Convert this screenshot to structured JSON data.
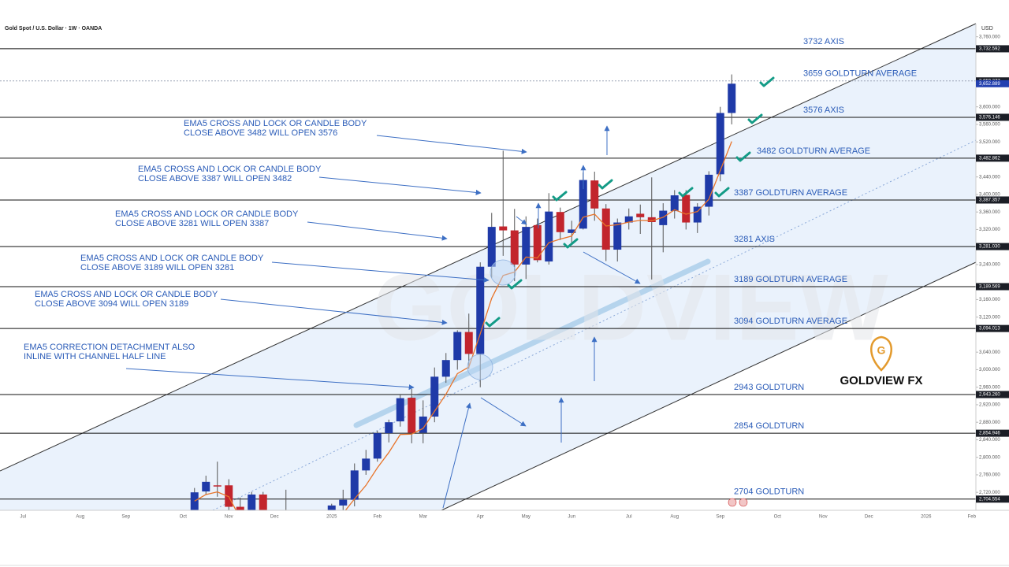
{
  "chart_data": {
    "type": "candlestick",
    "title": "Gold Spot / U.S. Dollar · 1W · OANDA",
    "currency": "USD",
    "brand": "GOLDVIEW FX",
    "watermark": "GOLDVIEW",
    "categories": [
      null,
      null,
      "Jul",
      null,
      null,
      null,
      null,
      "Aug",
      null,
      null,
      null,
      "Sep",
      null,
      null,
      null,
      null,
      "Oct",
      null,
      null,
      null,
      "Nov",
      null,
      null,
      null,
      "Dec",
      null,
      null,
      null,
      null,
      "2025",
      null,
      null,
      null,
      "Feb",
      null,
      null,
      null,
      "Mar",
      null,
      null,
      null,
      null,
      "Apr",
      null,
      null,
      null,
      "May",
      null,
      null,
      null,
      "Jun",
      null,
      null,
      null,
      null,
      "Jul",
      null,
      null,
      null,
      "Aug",
      null,
      null,
      null,
      "Sep",
      null,
      null,
      null,
      null,
      "Oct",
      null,
      null,
      null,
      "Nov",
      null,
      null,
      null,
      "Dec",
      null,
      null,
      null,
      null,
      "2026",
      null,
      null,
      null,
      "Feb"
    ],
    "open": [
      null,
      null,
      null,
      null,
      null,
      null,
      null,
      null,
      null,
      null,
      null,
      null,
      null,
      null,
      null,
      null,
      null,
      2656,
      2722,
      2736,
      2736,
      2687,
      2563,
      2715,
      2650,
      2633,
      2660,
      2622,
      2621,
      2640,
      2690,
      2703,
      2770,
      2797,
      2855,
      2882,
      2936,
      2856,
      2893,
      2984,
      3022,
      3086,
      3036,
      3235,
      3327,
      3318,
      3240,
      3330,
      3247,
      3360,
      3312,
      3322,
      3432,
      3368,
      3274,
      3336,
      3356,
      3348,
      3330,
      3362,
      3399,
      3336,
      3372,
      3446,
      3586,
      null,
      null,
      null,
      null,
      null,
      null,
      null,
      null,
      null,
      null,
      null,
      null,
      null,
      null,
      null,
      null,
      null,
      null,
      null,
      null,
      null
    ],
    "high": [
      null,
      null,
      null,
      null,
      null,
      null,
      null,
      null,
      null,
      null,
      null,
      null,
      null,
      null,
      null,
      null,
      null,
      2730,
      2758,
      2790,
      2750,
      2708,
      2721,
      2721,
      2677,
      2726,
      2671,
      2634,
      2650,
      2694,
      2726,
      2786,
      2817,
      2861,
      2886,
      2942,
      2956,
      2930,
      3005,
      3038,
      3090,
      3128,
      3245,
      3358,
      3500,
      3367,
      3350,
      3345,
      3403,
      3370,
      3340,
      3450,
      3452,
      3378,
      3345,
      3368,
      3377,
      3439,
      3380,
      3410,
      3410,
      3380,
      3453,
      3600,
      3674,
      null,
      null,
      null,
      null,
      null,
      null,
      null,
      null,
      null,
      null,
      null,
      null,
      null,
      null,
      null,
      null,
      null,
      null,
      null,
      null,
      null
    ],
    "low": [
      null,
      null,
      null,
      null,
      null,
      null,
      null,
      null,
      null,
      null,
      null,
      null,
      null,
      null,
      null,
      null,
      null,
      2640,
      2715,
      2710,
      2643,
      2536,
      2563,
      2632,
      2613,
      2622,
      2583,
      2596,
      2598,
      2614,
      2665,
      2688,
      2760,
      2790,
      2834,
      2870,
      2832,
      2832,
      2880,
      2970,
      3000,
      3002,
      2960,
      3210,
      3260,
      3202,
      3207,
      3245,
      3240,
      3296,
      3290,
      3320,
      3340,
      3248,
      3247,
      3320,
      3310,
      3206,
      3268,
      3345,
      3320,
      3312,
      3352,
      3430,
      3560,
      null,
      null,
      null,
      null,
      null,
      null,
      null,
      null,
      null,
      null,
      null,
      null,
      null,
      null,
      null,
      null,
      null,
      null,
      null,
      null,
      null
    ],
    "close": [
      null,
      null,
      null,
      null,
      null,
      null,
      null,
      null,
      null,
      null,
      null,
      null,
      null,
      null,
      null,
      null,
      null,
      2720,
      2744,
      2734,
      2687,
      2563,
      2715,
      2650,
      2633,
      2660,
      2622,
      2621,
      2640,
      2690,
      2703,
      2770,
      2797,
      2855,
      2880,
      2935,
      2856,
      2893,
      2984,
      3022,
      3086,
      3036,
      3235,
      3326,
      3318,
      3240,
      3326,
      3250,
      3361,
      3314,
      3320,
      3433,
      3368,
      3274,
      3336,
      3350,
      3348,
      3337,
      3363,
      3398,
      3336,
      3372,
      3445,
      3586,
      3652.889,
      null,
      null,
      null,
      null,
      null,
      null,
      null,
      null,
      null,
      null,
      null,
      null,
      null,
      null,
      null,
      null,
      null,
      null,
      null,
      null,
      null
    ],
    "ema": [
      null,
      null,
      null,
      null,
      null,
      null,
      null,
      null,
      null,
      null,
      null,
      null,
      null,
      null,
      null,
      null,
      null,
      2700,
      2715,
      2721,
      2710,
      2661,
      2679,
      2669,
      2657,
      2658,
      2646,
      2638,
      2639,
      2656,
      2672,
      2705,
      2736,
      2776,
      2811,
      2852,
      2853,
      2866,
      2905,
      2944,
      2991,
      3006,
      3082,
      3163,
      3215,
      3223,
      3257,
      3255,
      3290,
      3298,
      3305,
      3348,
      3355,
      3328,
      3331,
      3337,
      3341,
      3340,
      3348,
      3365,
      3355,
      3361,
      3389,
      3455,
      3521,
      null,
      null,
      null,
      null,
      null,
      null,
      null,
      null,
      null,
      null,
      null,
      null,
      null,
      null,
      null,
      null,
      null,
      null,
      null,
      null,
      null
    ],
    "up_color": "#1f3aa8",
    "down_color": "#c2252d",
    "ema_color": "#e8742a",
    "last_price": {
      "value": 3652.889,
      "label": "3,652.889"
    },
    "ylim": [
      2679,
      3790
    ],
    "yticks": [
      {
        "value": 2720,
        "label": "2,720.000"
      },
      {
        "value": 2760,
        "label": "2,760.000"
      },
      {
        "value": 2800,
        "label": "2,800.000"
      },
      {
        "value": 2840,
        "label": "2,840.000"
      },
      {
        "value": 2880,
        "label": "2,880.000"
      },
      {
        "value": 2920,
        "label": "2,920.000"
      },
      {
        "value": 2960,
        "label": "2,960.000"
      },
      {
        "value": 3000,
        "label": "3,000.000"
      },
      {
        "value": 3040,
        "label": "3,040.000"
      },
      {
        "value": 3120,
        "label": "3,120.000"
      },
      {
        "value": 3160,
        "label": "3,160.000"
      },
      {
        "value": 3240,
        "label": "3,240.000"
      },
      {
        "value": 3320,
        "label": "3,320.000"
      },
      {
        "value": 3360,
        "label": "3,360.000"
      },
      {
        "value": 3400,
        "label": "3,400.000"
      },
      {
        "value": 3440,
        "label": "3,440.000"
      },
      {
        "value": 3520,
        "label": "3,520.000"
      },
      {
        "value": 3560,
        "label": "3,560.000"
      },
      {
        "value": 3600,
        "label": "3,600.000"
      },
      {
        "value": 3760,
        "label": "3,760.000"
      }
    ],
    "levels": [
      {
        "value": 3732.592,
        "label": "3732 AXIS",
        "tag": "3,732.592"
      },
      {
        "value": 3659.277,
        "label": "3659 GOLDTURN AVERAGE",
        "tag": "3,659.277",
        "line_style": "dotted"
      },
      {
        "value": 3576.146,
        "label": "3576 AXIS",
        "tag": "3,576.146"
      },
      {
        "value": 3482.862,
        "label": "3482 GOLDTURN AVERAGE",
        "tag": "3,482.862"
      },
      {
        "value": 3387.357,
        "label": "3387 GOLDTURN AVERAGE",
        "tag": "3,387.357"
      },
      {
        "value": 3281.03,
        "label": "3281 AXIS",
        "tag": "3,281.030"
      },
      {
        "value": 3189.569,
        "label": "3189 GOLDTURN AVERAGE",
        "tag": "3,189.569"
      },
      {
        "value": 3094.013,
        "label": "3094 GOLDTURN AVERAGE",
        "tag": "3,094.013"
      },
      {
        "value": 2943.26,
        "label": "2943 GOLDTURN",
        "tag": "2,943.260"
      },
      {
        "value": 2854.946,
        "label": "2854 GOLDTURN",
        "tag": "2,854.946"
      },
      {
        "value": 2704.554,
        "label": "2704 GOLDTURN",
        "tag": "2,704.554"
      }
    ],
    "annotations": [
      {
        "lines": [
          "EMA5 CROSS AND LOCK OR CANDLE BODY",
          "CLOSE ABOVE 3482 WILL OPEN 3576"
        ]
      },
      {
        "lines": [
          "EMA5 CROSS AND LOCK OR CANDLE BODY",
          "CLOSE ABOVE 3387 WILL OPEN 3482"
        ]
      },
      {
        "lines": [
          "EMA5 CROSS AND LOCK OR CANDLE BODY",
          "CLOSE ABOVE 3281 WILL OPEN 3387"
        ]
      },
      {
        "lines": [
          "EMA5 CROSS AND LOCK OR CANDLE BODY",
          "CLOSE ABOVE 3189 WILL OPEN 3281"
        ]
      },
      {
        "lines": [
          "EMA5 CROSS AND LOCK OR CANDLE BODY",
          "CLOSE ABOVE 3094 WILL OPEN 3189"
        ]
      },
      {
        "lines": [
          "EMA5 CORRECTION DETACHMENT ALSO",
          "INLINE WITH CHANNEL HALF LINE"
        ]
      }
    ]
  }
}
